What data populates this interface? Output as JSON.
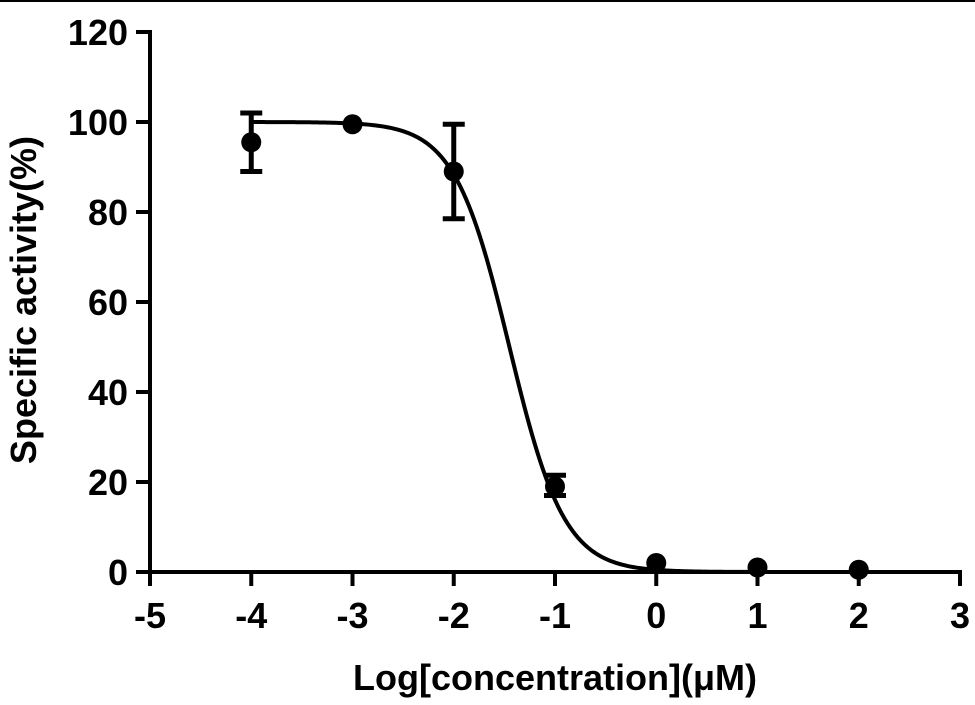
{
  "chart_data": {
    "type": "scatter",
    "title": "",
    "xlabel": "Log[concentration](μM)",
    "ylabel": "Specific activity(%)",
    "xlim": [
      -5,
      3
    ],
    "ylim": [
      0,
      120
    ],
    "x_ticks": [
      "-5",
      "-4",
      "-3",
      "-2",
      "-1",
      "0",
      "1",
      "2",
      "3"
    ],
    "y_ticks": [
      "0",
      "20",
      "40",
      "60",
      "80",
      "100",
      "120"
    ],
    "grid": false,
    "legend": "none",
    "series": [
      {
        "points": [
          {
            "x": -4,
            "y": 95.5,
            "err_low": 89,
            "err_high": 102
          },
          {
            "x": -3,
            "y": 99.5,
            "err_low": 99.5,
            "err_high": 99.5
          },
          {
            "x": -2,
            "y": 89,
            "err_low": 78.5,
            "err_high": 99.5
          },
          {
            "x": -1,
            "y": 19,
            "err_low": 17,
            "err_high": 21.5
          },
          {
            "x": 0,
            "y": 2,
            "err_low": 2,
            "err_high": 2
          },
          {
            "x": 1,
            "y": 1,
            "err_low": 1,
            "err_high": 1
          },
          {
            "x": 2,
            "y": 0.5,
            "err_low": 0.5,
            "err_high": 0.5
          }
        ],
        "fit": {
          "model": "sigmoidal dose-response",
          "top": 100,
          "bottom": 0,
          "logIC50": -1.45,
          "hill": -1.6
        }
      }
    ],
    "colors": {
      "marker": "#000000",
      "line": "#000000",
      "axis": "#000000"
    }
  }
}
